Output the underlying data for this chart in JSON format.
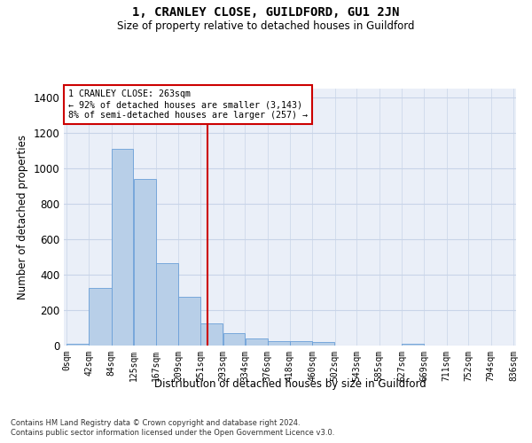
{
  "title": "1, CRANLEY CLOSE, GUILDFORD, GU1 2JN",
  "subtitle": "Size of property relative to detached houses in Guildford",
  "xlabel": "Distribution of detached houses by size in Guildford",
  "ylabel": "Number of detached properties",
  "bin_labels": [
    "0sqm",
    "42sqm",
    "84sqm",
    "125sqm",
    "167sqm",
    "209sqm",
    "251sqm",
    "293sqm",
    "334sqm",
    "376sqm",
    "418sqm",
    "460sqm",
    "502sqm",
    "543sqm",
    "585sqm",
    "627sqm",
    "669sqm",
    "711sqm",
    "752sqm",
    "794sqm",
    "836sqm"
  ],
  "bar_heights": [
    10,
    325,
    1110,
    940,
    465,
    275,
    125,
    70,
    40,
    25,
    25,
    20,
    0,
    0,
    0,
    10,
    0,
    0,
    0,
    0
  ],
  "bar_color": "#b8cfe8",
  "bar_edge_color": "#6a9fd8",
  "grid_color": "#c8d4e8",
  "background_color": "#eaeff8",
  "property_line_x": 263,
  "property_line_color": "#cc0000",
  "annotation_text": "1 CRANLEY CLOSE: 263sqm\n← 92% of detached houses are smaller (3,143)\n8% of semi-detached houses are larger (257) →",
  "annotation_box_color": "#cc0000",
  "footnote1": "Contains HM Land Registry data © Crown copyright and database right 2024.",
  "footnote2": "Contains public sector information licensed under the Open Government Licence v3.0.",
  "ylim": [
    0,
    1450
  ],
  "bin_edges": [
    0,
    42,
    84,
    125,
    167,
    209,
    251,
    293,
    334,
    376,
    418,
    460,
    502,
    543,
    585,
    627,
    669,
    711,
    752,
    794,
    836
  ]
}
